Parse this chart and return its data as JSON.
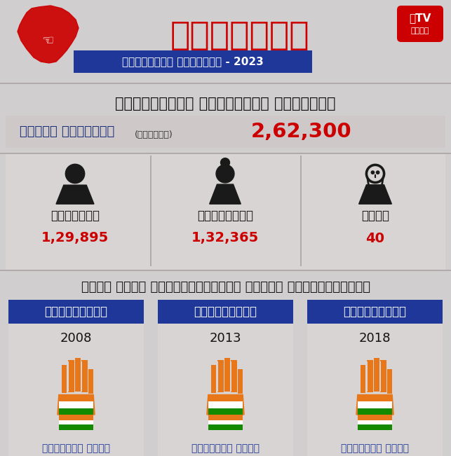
{
  "bg_color": "#d0cece",
  "main_title": "ಕರ್ನಾಟಕ",
  "subtitle": "ವಿಧಾನಸಭೆ ಚುನಾವಣೆ - 2023",
  "constituency_title": "ನರಸಿಂಹರಾಜ ವಿಧಾನಸಭಾ ಕ್ಷೇತ್ರ",
  "total_voters_label": "ಒಟ್ಟು ಮತದಾರರು",
  "approx_label": "(ಅಂದಾಜು)",
  "total_voters": "2,62,300",
  "male_label": "ಪುರುಷರು",
  "female_label": "ಮಹಿಳೆಯರು",
  "other_label": "ಇತರೆ",
  "male_count": "1,29,895",
  "female_count": "1,32,365",
  "other_count": "40",
  "section2_title": "ಕಳೆದ ಮೂರು ಚುನಾವಣೆಯಲ್ಲಿ ಗೆದ್ದ ಅಭ್ಯರ್ಥಿಗಳು",
  "party_label": "ಕಾಂಗ್ರೆಸ್",
  "years": [
    "2008",
    "2013",
    "2018"
  ],
  "winner_label": "ತನ್ವೀರ್ ಸೇಠ್",
  "blue_color": "#1e3799",
  "red_color": "#cc0000",
  "dark_blue": "#1a2e7a",
  "white_color": "#ffffff",
  "subtitle_bg": "#1e3799",
  "etv_bg": "#cc0000",
  "voters_row_bg": "#cfc8c8",
  "section_bg": "#d0cece",
  "card_bg": "#d8d4d4"
}
